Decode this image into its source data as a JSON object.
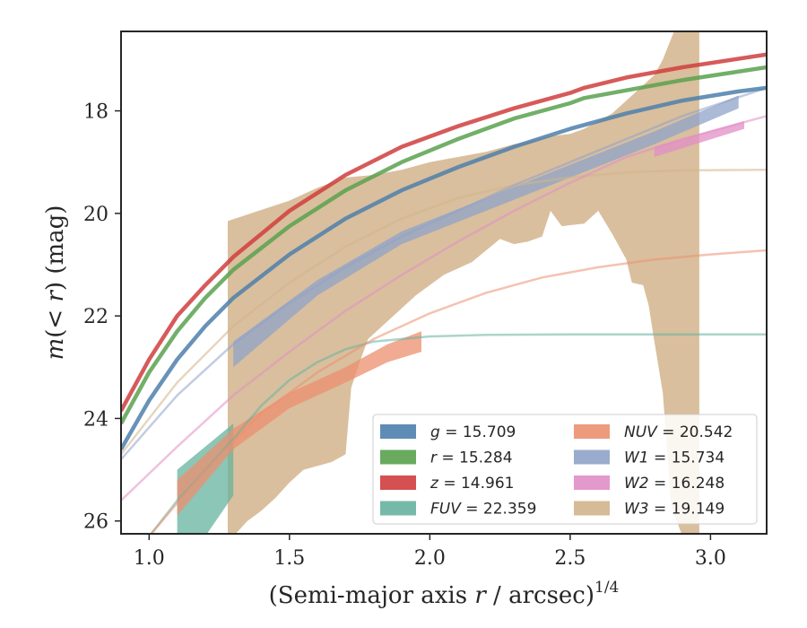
{
  "chart_data": {
    "type": "line",
    "xlabel": "(Semi-major axis r / arcsec)",
    "xlabel_var": "r",
    "xlabel_pre": "(Semi-major axis ",
    "xlabel_post": " / arcsec)",
    "xlabel_sup": "1/4",
    "ylabel_pre": "m(",
    "ylabel_lt": "< ",
    "ylabel_var": "r",
    "ylabel_post": ") (mag)",
    "xlim": [
      0.9,
      3.2
    ],
    "ylim": [
      26.25,
      16.45
    ],
    "y_inverted": true,
    "grid": false,
    "legend_position": "lower-right",
    "x_ticks": [
      {
        "value": 1.0,
        "label": "1.0"
      },
      {
        "value": 1.5,
        "label": "1.5"
      },
      {
        "value": 2.0,
        "label": "2.0"
      },
      {
        "value": 2.5,
        "label": "2.5"
      },
      {
        "value": 3.0,
        "label": "3.0"
      }
    ],
    "y_ticks": [
      {
        "value": 18,
        "label": "18"
      },
      {
        "value": 20,
        "label": "20"
      },
      {
        "value": 22,
        "label": "22"
      },
      {
        "value": 24,
        "label": "24"
      },
      {
        "value": 26,
        "label": "26"
      }
    ],
    "series": [
      {
        "name": "W3",
        "label_var": "W3",
        "label_value": "= 19.149",
        "color": "#d2b48c",
        "band": {
          "x": [
            1.28,
            1.28,
            1.5,
            1.6,
            1.7,
            1.8,
            1.9,
            2.0,
            2.1,
            2.2,
            2.3,
            2.35,
            2.42,
            2.5,
            2.55,
            2.6,
            2.65,
            2.7,
            2.75,
            2.8,
            2.83,
            2.87,
            2.9,
            2.96,
            2.96,
            2.93,
            2.9,
            2.86,
            2.83,
            2.8,
            2.78,
            2.76,
            2.72,
            2.7,
            2.65,
            2.6,
            2.55,
            2.47,
            2.43,
            2.4,
            2.35,
            2.3,
            2.25,
            2.15,
            2.05,
            1.95,
            1.85,
            1.78,
            1.75,
            1.72,
            1.7,
            1.65,
            1.55,
            1.5,
            1.45,
            1.4,
            1.35,
            1.3,
            1.28
          ],
          "upper": [
            20.15,
            20.15,
            19.75,
            19.5,
            19.3,
            19.25,
            19.15,
            19.0,
            18.9,
            18.8,
            18.65,
            18.6,
            18.5,
            18.45,
            18.35,
            18.2,
            18.05,
            17.8,
            17.55,
            17.3,
            17.0,
            16.45,
            16.45,
            16.45,
            26.3,
            26.3,
            26.3,
            25.7,
            23.5,
            22.5,
            21.8,
            21.4,
            21.35,
            20.9,
            20.4,
            19.95,
            20.2,
            20.25,
            19.95,
            20.45,
            20.55,
            20.6,
            20.5,
            20.95,
            21.2,
            21.6,
            22.1,
            22.45,
            22.9,
            23.4,
            24.7,
            24.85,
            25.0,
            25.25,
            25.55,
            25.8,
            26.0,
            26.3,
            26.3
          ]
        },
        "line": {
          "x": [
            0.9,
            1.1,
            1.3,
            1.5,
            1.7,
            1.9,
            2.1,
            2.3,
            2.5,
            2.7,
            2.9,
            3.2
          ],
          "y": [
            24.7,
            23.3,
            22.2,
            21.35,
            20.65,
            20.1,
            19.7,
            19.45,
            19.3,
            19.2,
            19.16,
            19.15
          ]
        }
      },
      {
        "name": "FUV",
        "label_var": "FUV",
        "label_value": "= 22.359",
        "color": "#66b39e",
        "band": {
          "x": [
            1.1,
            1.2,
            1.3,
            1.3,
            1.2,
            1.1
          ],
          "upper": [
            25.0,
            24.55,
            24.1,
            25.5,
            26.3,
            26.3
          ]
        },
        "line": {
          "x": [
            1.0,
            1.1,
            1.2,
            1.3,
            1.4,
            1.5,
            1.6,
            1.7,
            1.8,
            2.0,
            2.2,
            2.5,
            3.2
          ],
          "y": [
            26.3,
            25.6,
            25.0,
            24.4,
            23.75,
            23.25,
            22.9,
            22.65,
            22.5,
            22.4,
            22.37,
            22.36,
            22.359
          ]
        }
      },
      {
        "name": "NUV",
        "label_var": "NUV",
        "label_value": "= 20.542",
        "color": "#ec8f6f",
        "band": {
          "x": [
            1.1,
            1.3,
            1.5,
            1.7,
            1.85,
            1.97,
            1.97,
            1.85,
            1.7,
            1.5,
            1.3,
            1.1
          ],
          "upper": [
            25.2,
            24.2,
            23.5,
            23.0,
            22.55,
            22.3,
            22.7,
            22.9,
            23.3,
            23.8,
            24.6,
            25.9
          ]
        },
        "line": {
          "x": [
            1.0,
            1.2,
            1.4,
            1.6,
            1.8,
            2.0,
            2.2,
            2.4,
            2.6,
            2.8,
            3.0,
            3.2
          ],
          "y": [
            26.3,
            25.0,
            23.9,
            23.1,
            22.45,
            21.95,
            21.55,
            21.25,
            21.05,
            20.9,
            20.8,
            20.72
          ]
        }
      },
      {
        "name": "W2",
        "label_var": "W2",
        "label_value": "= 16.248",
        "color": "#e18ec6",
        "band": {
          "x": [
            2.8,
            3.12,
            3.12,
            2.8
          ],
          "upper": [
            18.7,
            18.2,
            18.35,
            18.9
          ]
        },
        "line": {
          "x": [
            0.9,
            1.1,
            1.3,
            1.5,
            1.7,
            1.9,
            2.1,
            2.3,
            2.5,
            2.7,
            2.9,
            3.2
          ],
          "y": [
            25.6,
            24.55,
            23.55,
            22.7,
            21.9,
            21.2,
            20.55,
            19.95,
            19.4,
            18.9,
            18.55,
            18.1
          ]
        }
      },
      {
        "name": "W1",
        "label_var": "W1",
        "label_value": "= 15.734",
        "color": "#8fa3c8",
        "band": {
          "x": [
            1.3,
            1.6,
            1.9,
            2.2,
            2.5,
            2.8,
            3.1,
            3.1,
            2.8,
            2.5,
            2.2,
            1.9,
            1.6,
            1.3
          ],
          "upper": [
            22.5,
            21.3,
            20.35,
            19.7,
            19.05,
            18.4,
            17.7,
            17.95,
            18.65,
            19.3,
            19.95,
            20.6,
            21.6,
            23.0
          ]
        },
        "line": {
          "x": [
            0.9,
            1.1,
            1.3,
            1.5,
            1.7,
            1.9,
            2.1,
            2.3,
            2.5,
            2.7,
            2.9,
            3.2
          ],
          "y": [
            24.8,
            23.55,
            22.55,
            21.75,
            21.05,
            20.45,
            19.95,
            19.45,
            19.0,
            18.55,
            18.1,
            17.55
          ]
        }
      },
      {
        "name": "g",
        "label_var": "g",
        "label_value": "= 15.709",
        "color": "#4e7fac",
        "band": null,
        "line": {
          "x": [
            0.9,
            1.0,
            1.1,
            1.2,
            1.3,
            1.5,
            1.7,
            1.9,
            2.1,
            2.3,
            2.5,
            2.7,
            2.9,
            3.1,
            3.2
          ],
          "y": [
            24.6,
            23.65,
            22.85,
            22.2,
            21.65,
            20.8,
            20.1,
            19.55,
            19.1,
            18.7,
            18.35,
            18.05,
            17.8,
            17.62,
            17.55
          ]
        }
      },
      {
        "name": "r",
        "label_var": "r",
        "label_value": "= 15.284",
        "color": "#59a14f",
        "band": null,
        "line": {
          "x": [
            0.9,
            1.0,
            1.1,
            1.2,
            1.3,
            1.5,
            1.7,
            1.9,
            2.1,
            2.3,
            2.5,
            2.55,
            2.7,
            2.9,
            3.2
          ],
          "y": [
            24.1,
            23.1,
            22.3,
            21.65,
            21.1,
            20.25,
            19.55,
            19.0,
            18.55,
            18.15,
            17.85,
            17.75,
            17.6,
            17.4,
            17.15
          ]
        }
      },
      {
        "name": "z",
        "label_var": "z",
        "label_value": "= 14.961",
        "color": "#d03d3d",
        "band": null,
        "line": {
          "x": [
            0.9,
            1.0,
            1.1,
            1.2,
            1.3,
            1.5,
            1.7,
            1.9,
            2.1,
            2.3,
            2.5,
            2.55,
            2.7,
            2.9,
            3.2
          ],
          "y": [
            23.85,
            22.85,
            22.0,
            21.4,
            20.85,
            19.95,
            19.25,
            18.7,
            18.3,
            17.95,
            17.65,
            17.55,
            17.35,
            17.15,
            16.9
          ]
        }
      }
    ],
    "legend_columns": [
      [
        "g",
        "r",
        "z",
        "FUV"
      ],
      [
        "NUV",
        "W1",
        "W2",
        "W3"
      ]
    ]
  }
}
